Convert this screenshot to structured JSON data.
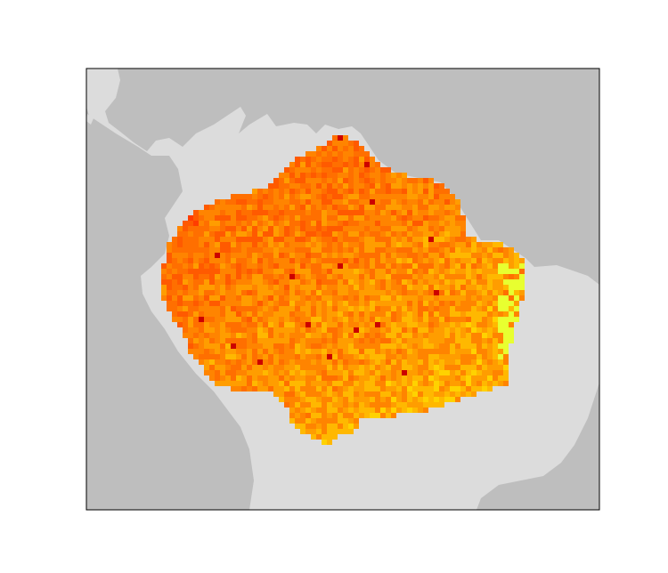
{
  "map": {
    "ocean_color": "#bebebe",
    "land_color": "#dcdcdc",
    "frame_color": "#000000",
    "palette": [
      "#ff3d00",
      "#ff5a00",
      "#ff6f00",
      "#ff8400",
      "#ff9d00",
      "#ffb800",
      "#ffd200",
      "#ffee00",
      "#e8ff30",
      "#cc0000",
      "#990000"
    ],
    "regions": [
      "central-america",
      "south-america",
      "caribbean-islands"
    ],
    "raster_layer": "amazon-basin-grid"
  }
}
